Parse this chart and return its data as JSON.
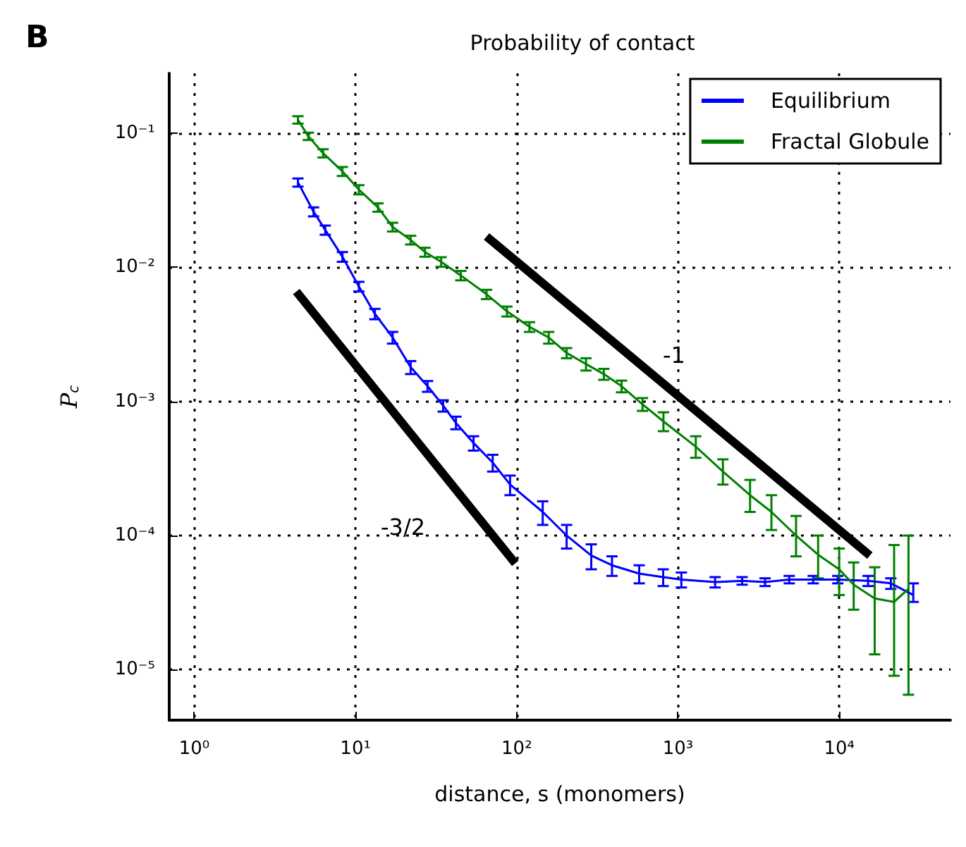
{
  "chart_data": {
    "type": "line",
    "title": "Probability of contact",
    "xlabel": "distance, s (monomers)",
    "ylabel": "P$_{c}$",
    "log": "xy",
    "grid": true,
    "legend": "top right",
    "marker": "none",
    "line_style": "solid",
    "xlim": [
      0.7,
      49000
    ],
    "ylim": [
      4.2e-06,
      0.28
    ],
    "xticks": [
      {
        "value": 1,
        "label": "10⁰"
      },
      {
        "value": 10,
        "label": "10¹"
      },
      {
        "value": 100,
        "label": "10²"
      },
      {
        "value": 1000,
        "label": "10³"
      },
      {
        "value": 10000,
        "label": "10⁴"
      }
    ],
    "yticks": [
      {
        "value": 1e-05,
        "label": "10⁻⁵"
      },
      {
        "value": 0.0001,
        "label": "10⁻⁴"
      },
      {
        "value": 0.001,
        "label": "10⁻³"
      },
      {
        "value": 0.01,
        "label": "10⁻²"
      },
      {
        "value": 0.1,
        "label": "10⁻¹"
      }
    ],
    "annotations": [
      "B",
      "-3/2",
      "-1"
    ],
    "series": [
      {
        "name": "Equilibrium",
        "color": "#0000ff",
        "x": [
          4.4,
          5.5,
          6.5,
          8.3,
          10.5,
          13.2,
          17,
          22,
          28,
          35,
          42,
          54,
          71,
          91,
          145,
          204,
          290,
          390,
          575,
          810,
          1050,
          1700,
          2500,
          3470,
          4900,
          6900,
          9800,
          15100,
          20900,
          28800
        ],
        "values": [
          0.043,
          0.026,
          0.019,
          0.012,
          0.0072,
          0.0045,
          0.003,
          0.0018,
          0.0013,
          0.00093,
          0.00069,
          0.00049,
          0.00035,
          0.00024,
          0.00015,
          0.0001,
          7.1e-05,
          6e-05,
          5.2e-05,
          4.9e-05,
          4.7e-05,
          4.5e-05,
          4.6e-05,
          4.5e-05,
          4.7e-05,
          4.7e-05,
          4.7e-05,
          4.6e-05,
          4.4e-05,
          3.6e-05
        ],
        "errors": [
          [
            0.04,
            0.046
          ],
          [
            0.024,
            0.028
          ],
          [
            0.0175,
            0.0205
          ],
          [
            0.011,
            0.013
          ],
          [
            0.0066,
            0.0078
          ],
          [
            0.0041,
            0.0049
          ],
          [
            0.0027,
            0.0033
          ],
          [
            0.0016,
            0.002
          ],
          [
            0.00118,
            0.00142
          ],
          [
            0.00084,
            0.00102
          ],
          [
            0.00062,
            0.00077
          ],
          [
            0.00043,
            0.00055
          ],
          [
            0.0003,
            0.0004
          ],
          [
            0.0002,
            0.00028
          ],
          [
            0.00012,
            0.00018
          ],
          [
            8e-05,
            0.00012
          ],
          [
            5.6e-05,
            8.6e-05
          ],
          [
            5e-05,
            7e-05
          ],
          [
            4.4e-05,
            6e-05
          ],
          [
            4.2e-05,
            5.6e-05
          ],
          [
            4.1e-05,
            5.3e-05
          ],
          [
            4.1e-05,
            4.9e-05
          ],
          [
            4.3e-05,
            4.9e-05
          ],
          [
            4.2e-05,
            4.8e-05
          ],
          [
            4.4e-05,
            5e-05
          ],
          [
            4.4e-05,
            5e-05
          ],
          [
            4.4e-05,
            5e-05
          ],
          [
            4.2e-05,
            5e-05
          ],
          [
            4e-05,
            4.8e-05
          ],
          [
            3.2e-05,
            4.4e-05
          ]
        ]
      },
      {
        "name": "Fractal Globule",
        "color": "#008000",
        "x": [
          4.4,
          5.1,
          6.3,
          8.3,
          10.5,
          13.8,
          17,
          22,
          27,
          34,
          45,
          65,
          87,
          120,
          158,
          204,
          269,
          347,
          447,
          603,
          813,
          1290,
          1900,
          2800,
          3800,
          5400,
          7400,
          10000,
          12300,
          16600,
          21900,
          26900
        ],
        "values": [
          0.126,
          0.095,
          0.071,
          0.052,
          0.038,
          0.028,
          0.02,
          0.016,
          0.013,
          0.011,
          0.0087,
          0.0063,
          0.0047,
          0.0036,
          0.003,
          0.0023,
          0.0019,
          0.0016,
          0.0013,
          0.00095,
          0.00071,
          0.00046,
          0.0003,
          0.0002,
          0.00015,
          0.0001,
          7.2e-05,
          5.6e-05,
          4.3e-05,
          3.4e-05,
          3.2e-05,
          4e-05
        ],
        "errors": [
          [
            0.118,
            0.134
          ],
          [
            0.089,
            0.101
          ],
          [
            0.066,
            0.076
          ],
          [
            0.048,
            0.056
          ],
          [
            0.035,
            0.041
          ],
          [
            0.026,
            0.03
          ],
          [
            0.0185,
            0.0215
          ],
          [
            0.0148,
            0.0172
          ],
          [
            0.012,
            0.014
          ],
          [
            0.0101,
            0.0119
          ],
          [
            0.008,
            0.0094
          ],
          [
            0.0058,
            0.0068
          ],
          [
            0.0043,
            0.0051
          ],
          [
            0.0033,
            0.0039
          ],
          [
            0.0027,
            0.0033
          ],
          [
            0.0021,
            0.0025
          ],
          [
            0.0017,
            0.0021
          ],
          [
            0.00145,
            0.00175
          ],
          [
            0.00117,
            0.00143
          ],
          [
            0.00085,
            0.00106
          ],
          [
            0.0006,
            0.00083
          ],
          [
            0.00038,
            0.00055
          ],
          [
            0.00024,
            0.00037
          ],
          [
            0.00015,
            0.00026
          ],
          [
            0.00011,
            0.0002
          ],
          [
            7e-05,
            0.00014
          ],
          [
            4.8e-05,
            0.0001
          ],
          [
            3.6e-05,
            8e-05
          ],
          [
            2.8e-05,
            6.3e-05
          ],
          [
            1.3e-05,
            5.8e-05
          ],
          [
            9e-06,
            8.5e-05
          ],
          [
            6.5e-06,
            0.0001
          ]
        ]
      },
      {
        "type": "line",
        "color": "#000000",
        "x": [
          4.3,
          98
        ],
        "values": [
          0.0066,
          6.2e-05
        ]
      },
      {
        "type": "line",
        "color": "#000000",
        "x": [
          65,
          15500
        ],
        "values": [
          0.017,
          7.1e-05
        ]
      }
    ]
  }
}
